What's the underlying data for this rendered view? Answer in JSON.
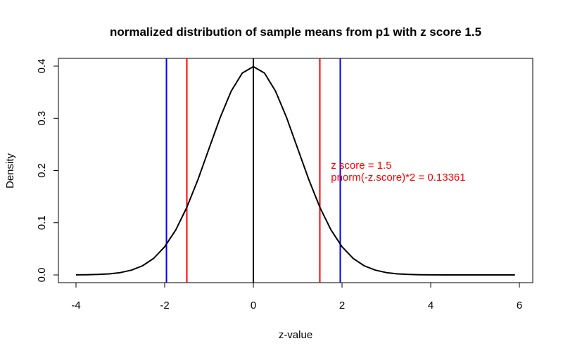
{
  "chart_data": {
    "type": "line",
    "title": "normalized distribution of sample means from p1 with z score 1.5",
    "xlabel": "z-value",
    "ylabel": "Density",
    "xlim": [
      -4.4,
      6.3
    ],
    "ylim": [
      -0.016,
      0.414
    ],
    "x_ticks": [
      -4,
      -2,
      0,
      2,
      4,
      6
    ],
    "x_tick_labels": [
      "-4",
      "-2",
      "0",
      "2",
      "4",
      "6"
    ],
    "y_ticks": [
      0.0,
      0.1,
      0.2,
      0.3,
      0.4
    ],
    "y_tick_labels": [
      "0.0",
      "0.1",
      "0.2",
      "0.3",
      "0.4"
    ],
    "grid": false,
    "series": [
      {
        "color": "#000000",
        "x": [
          -4,
          -3.75,
          -3.5,
          -3.25,
          -3,
          -2.75,
          -2.5,
          -2.25,
          -2,
          -1.75,
          -1.5,
          -1.25,
          -1,
          -0.75,
          -0.5,
          -0.25,
          0,
          0.25,
          0.5,
          0.75,
          1,
          1.25,
          1.5,
          1.75,
          2,
          2.25,
          2.5,
          2.75,
          3,
          3.25,
          3.5,
          3.75,
          4,
          4.5,
          5,
          5.5,
          5.9
        ],
        "y": [
          0.0001,
          0.0004,
          0.0009,
          0.002,
          0.0044,
          0.0091,
          0.0175,
          0.0317,
          0.054,
          0.0863,
          0.1295,
          0.1826,
          0.242,
          0.3011,
          0.3521,
          0.3867,
          0.3989,
          0.3867,
          0.3521,
          0.3011,
          0.242,
          0.1826,
          0.1295,
          0.0863,
          0.054,
          0.0317,
          0.0175,
          0.0091,
          0.0044,
          0.002,
          0.0009,
          0.0004,
          0.0001,
          0,
          0,
          0,
          0
        ]
      }
    ],
    "vertical_lines": [
      {
        "x": 0,
        "color": "#000000"
      },
      {
        "x": -1.5,
        "color": "#ff0000"
      },
      {
        "x": 1.5,
        "color": "#ff0000"
      },
      {
        "x": -1.96,
        "color": "#0000ff"
      },
      {
        "x": 1.96,
        "color": "#0000ff"
      }
    ],
    "annotations": [
      {
        "text": "z score = 1.5",
        "x": 1.75,
        "y": 0.21,
        "color": "#ff0000"
      },
      {
        "text": "pnorm(-z.score)*2 = 0.13361",
        "x": 1.75,
        "y": 0.187,
        "color": "#ff0000"
      }
    ]
  }
}
